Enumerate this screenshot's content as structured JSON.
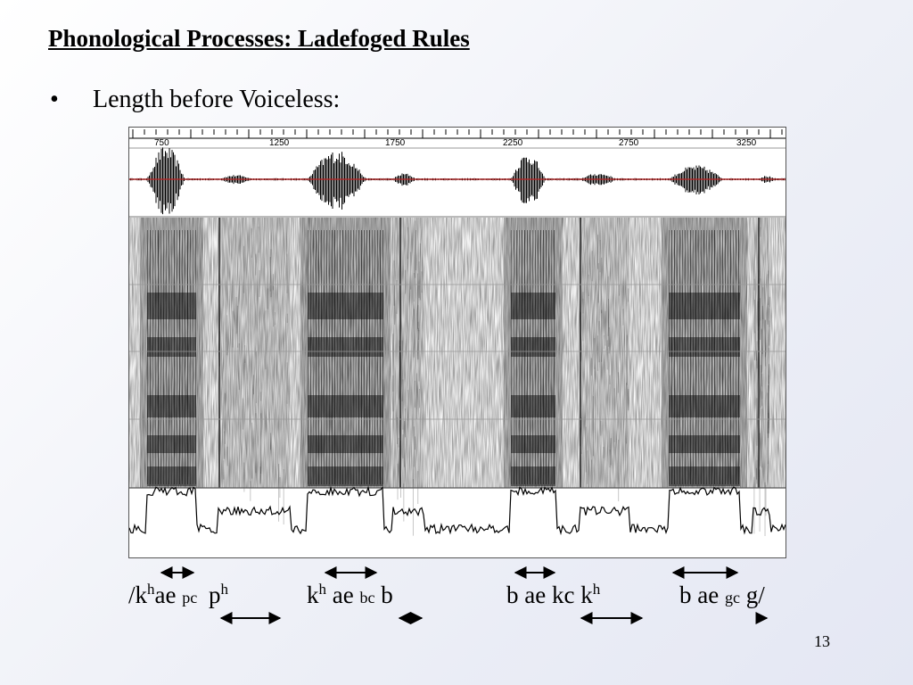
{
  "slide": {
    "title": "Phonological Processes: Ladefoged Rules",
    "bullet_marker": "•",
    "bullet_text": "Length before Voiceless:",
    "page_number": "13"
  },
  "figure": {
    "time_ticks": [
      "750",
      "1250",
      "1750",
      "2250",
      "2750",
      "3250"
    ]
  },
  "transcription": {
    "open_slash": "/",
    "word1": {
      "k": "k",
      "k_sup": "h",
      "ae": "ae",
      "closure": "pc",
      "p": "p",
      "p_sup": "h"
    },
    "word2": {
      "k": "k",
      "k_sup": "h",
      "ae": "ae",
      "closure": "bc",
      "b": "b"
    },
    "word3": {
      "text": "b ae kc k",
      "k_sup": "h"
    },
    "word4": {
      "b_ae": "b ae",
      "closure": "gc",
      "g": "g",
      "close_slash": "/"
    }
  }
}
